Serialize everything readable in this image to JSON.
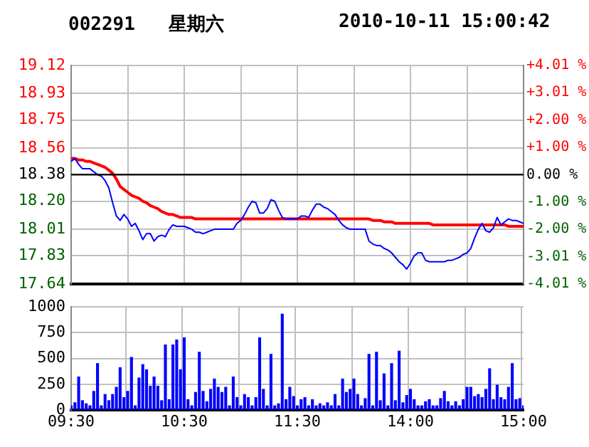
{
  "chart_data": [
    {
      "type": "line",
      "title": "002291   星期六",
      "subtitle": "2010-10-11 15:00:42",
      "categories": [
        null,
        null,
        null,
        null,
        null,
        null,
        null,
        null,
        null,
        null,
        null,
        null,
        null,
        null,
        null,
        null,
        null,
        null,
        null,
        null,
        null,
        null,
        null,
        null,
        null,
        null,
        null,
        null,
        null,
        null,
        null,
        null,
        null,
        null,
        null,
        null,
        null,
        null,
        null,
        null,
        null,
        null,
        null,
        null,
        null,
        null,
        null,
        null,
        null,
        null,
        null,
        null,
        null,
        null,
        null,
        null,
        null,
        null,
        null,
        null,
        null,
        null,
        null,
        null,
        null,
        null,
        null,
        null,
        null,
        null,
        null,
        null,
        null,
        null,
        null,
        null,
        null,
        null,
        null,
        null,
        null,
        null,
        null,
        null,
        null,
        null,
        null,
        null,
        null,
        null,
        null,
        null,
        null,
        null,
        null,
        null,
        null,
        null,
        null,
        null,
        null,
        null,
        null,
        null,
        null,
        null,
        null,
        null,
        null,
        null,
        null,
        null,
        null,
        null,
        null,
        null,
        null,
        null,
        null,
        null,
        null
      ],
      "ylim": [
        17.64,
        19.12
      ],
      "yticks": [
        19.12,
        18.93,
        18.75,
        18.56,
        18.38,
        {
          "value": 18.2,
          "label": "18.20"
        },
        18.01,
        17.83,
        17.64
      ],
      "y2lim": [
        -4.01,
        4.01
      ],
      "y2ticks": [
        {
          "value": 4.01,
          "label": "+4.01 %"
        },
        {
          "value": 3.01,
          "label": "+3.01 %"
        },
        {
          "value": 2.0,
          "label": "+2.00 %"
        },
        {
          "value": 1.0,
          "label": "+1.00 %"
        },
        {
          "value": 0,
          "label": "0.00 %"
        },
        {
          "value": -1.0,
          "label": "-1.00 %"
        },
        {
          "value": -2.0,
          "label": "-2.00 %"
        },
        {
          "value": -3.01,
          "label": "-3.01 %"
        },
        {
          "value": -4.01,
          "label": "-4.01 %"
        }
      ],
      "tick_labels": [
        "y",
        "y2"
      ],
      "grid": true,
      "legend": false,
      "ref_lines": [
        {
          "axis": "y",
          "value": 18.38,
          "color": "#000000"
        }
      ],
      "series": [
        {
          "color": "#0000ff",
          "values": [
            18.47,
            18.49,
            18.45,
            18.42,
            18.42,
            18.42,
            18.4,
            18.38,
            18.37,
            18.34,
            18.29,
            18.19,
            18.1,
            18.07,
            18.11,
            18.08,
            18.03,
            18.05,
            18.0,
            17.94,
            17.98,
            17.98,
            17.93,
            17.96,
            17.97,
            17.96,
            18.01,
            18.04,
            18.03,
            18.03,
            18.03,
            18.02,
            18.01,
            17.99,
            17.99,
            17.98,
            17.99,
            18.0,
            18.01,
            18.01,
            18.01,
            18.01,
            18.01,
            18.01,
            18.05,
            18.07,
            18.11,
            18.16,
            18.2,
            18.19,
            18.12,
            18.12,
            18.15,
            18.21,
            18.2,
            18.14,
            18.09,
            18.08,
            18.08,
            18.08,
            18.08,
            18.1,
            18.1,
            18.09,
            18.14,
            18.18,
            18.18,
            18.16,
            18.15,
            18.13,
            18.11,
            18.07,
            18.04,
            18.02,
            18.01,
            18.01,
            18.01,
            18.01,
            18.01,
            17.93,
            17.91,
            17.9,
            17.9,
            17.88,
            17.87,
            17.85,
            17.82,
            17.79,
            17.77,
            17.74,
            17.78,
            17.83,
            17.85,
            17.85,
            17.8,
            17.79,
            17.79,
            17.79,
            17.79,
            17.79,
            17.8,
            17.8,
            17.81,
            17.82,
            17.84,
            17.85,
            17.88,
            17.95,
            18.01,
            18.05,
            18.0,
            17.99,
            18.02,
            18.09,
            18.04,
            18.06,
            18.08,
            18.07,
            18.07,
            18.06,
            18.05
          ]
        },
        {
          "color": "#ff0000",
          "values": [
            18.49,
            18.49,
            18.48,
            18.48,
            18.47,
            18.47,
            18.46,
            18.45,
            18.44,
            18.43,
            18.41,
            18.39,
            18.35,
            18.3,
            18.28,
            18.26,
            18.24,
            18.23,
            18.22,
            18.2,
            18.19,
            18.17,
            18.16,
            18.15,
            18.13,
            18.12,
            18.11,
            18.11,
            18.1,
            18.09,
            18.09,
            18.09,
            18.09,
            18.08,
            18.08,
            18.08,
            18.08,
            18.08,
            18.08,
            18.08,
            18.08,
            18.08,
            18.08,
            18.08,
            18.08,
            18.08,
            18.08,
            18.08,
            18.08,
            18.08,
            18.08,
            18.08,
            18.08,
            18.08,
            18.08,
            18.08,
            18.08,
            18.08,
            18.08,
            18.08,
            18.08,
            18.08,
            18.08,
            18.08,
            18.08,
            18.08,
            18.08,
            18.08,
            18.08,
            18.08,
            18.08,
            18.08,
            18.08,
            18.08,
            18.08,
            18.08,
            18.08,
            18.08,
            18.08,
            18.08,
            18.07,
            18.07,
            18.07,
            18.06,
            18.06,
            18.06,
            18.05,
            18.05,
            18.05,
            18.05,
            18.05,
            18.05,
            18.05,
            18.05,
            18.05,
            18.05,
            18.04,
            18.04,
            18.04,
            18.04,
            18.04,
            18.04,
            18.04,
            18.04,
            18.04,
            18.04,
            18.04,
            18.04,
            18.04,
            18.04,
            18.04,
            18.04,
            18.04,
            18.04,
            18.04,
            18.04,
            18.03,
            18.03,
            18.03,
            18.03,
            18.03
          ]
        }
      ]
    },
    {
      "type": "bar",
      "categories": [
        "09:30",
        null,
        null,
        null,
        null,
        null,
        null,
        null,
        null,
        null,
        null,
        null,
        null,
        null,
        null,
        null,
        null,
        null,
        null,
        null,
        null,
        null,
        null,
        null,
        null,
        null,
        null,
        null,
        null,
        null,
        "10:30",
        null,
        null,
        null,
        null,
        null,
        null,
        null,
        null,
        null,
        null,
        null,
        null,
        null,
        null,
        null,
        null,
        null,
        null,
        null,
        null,
        null,
        null,
        null,
        null,
        null,
        null,
        null,
        null,
        null,
        "11:30",
        null,
        null,
        null,
        null,
        null,
        null,
        null,
        null,
        null,
        null,
        null,
        null,
        null,
        null,
        null,
        null,
        null,
        null,
        null,
        null,
        null,
        null,
        null,
        null,
        null,
        null,
        null,
        null,
        null,
        "14:00",
        null,
        null,
        null,
        null,
        null,
        null,
        null,
        null,
        null,
        null,
        null,
        null,
        null,
        null,
        null,
        null,
        null,
        null,
        null,
        null,
        null,
        null,
        null,
        null,
        null,
        null,
        null,
        null,
        null,
        "15:00"
      ],
      "ylim": [
        0,
        1000
      ],
      "yticks": [
        0,
        250,
        500,
        750,
        1000
      ],
      "grid": true,
      "legend": false,
      "series": [
        {
          "color": "#0000ff",
          "values": [
            40,
            70,
            320,
            90,
            60,
            40,
            180,
            450,
            40,
            150,
            90,
            150,
            220,
            410,
            120,
            180,
            510,
            40,
            310,
            440,
            390,
            230,
            320,
            230,
            90,
            630,
            100,
            630,
            680,
            390,
            700,
            100,
            40,
            170,
            560,
            180,
            80,
            200,
            300,
            220,
            170,
            220,
            40,
            320,
            120,
            40,
            150,
            120,
            40,
            120,
            700,
            200,
            40,
            540,
            40,
            60,
            930,
            100,
            220,
            130,
            40,
            100,
            120,
            40,
            100,
            40,
            60,
            40,
            70,
            40,
            150,
            40,
            300,
            170,
            200,
            300,
            150,
            40,
            110,
            540,
            40,
            560,
            90,
            350,
            40,
            450,
            90,
            570,
            70,
            140,
            200,
            100,
            40,
            40,
            80,
            100,
            40,
            40,
            110,
            180,
            80,
            40,
            80,
            40,
            100,
            220,
            220,
            130,
            150,
            120,
            200,
            400,
            100,
            240,
            120,
            100,
            220,
            450,
            100,
            110,
            40
          ]
        }
      ]
    }
  ]
}
